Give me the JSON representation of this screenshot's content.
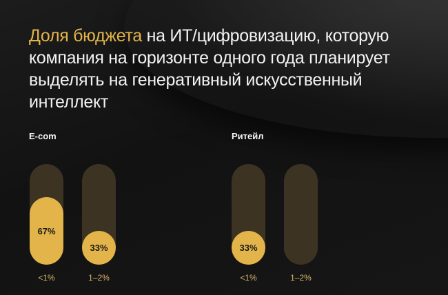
{
  "title": {
    "accent": "Доля бюджета",
    "rest": " на ИТ/цифровизацию, которую компания на горизонте одного года планирует выделять на генеративный искусственный интеллект"
  },
  "groups": [
    {
      "label": "E-com",
      "bars": [
        {
          "category": "<1%",
          "value": 67,
          "value_label": "67%"
        },
        {
          "category": "1–2%",
          "value": 33,
          "value_label": "33%"
        }
      ]
    },
    {
      "label": "Ритейл",
      "bars": [
        {
          "category": "<1%",
          "value": 33,
          "value_label": "33%"
        },
        {
          "category": "1–2%",
          "value": 0,
          "value_label": ""
        }
      ]
    }
  ],
  "colors": {
    "accent": "#e3b449",
    "track": "#3d3322",
    "background": "#141414",
    "category_text": "#d9b96a"
  },
  "chart_data": {
    "type": "bar",
    "title": "Доля бюджета на ИТ/цифровизацию, которую компания на горизонте одного года планирует выделять на генеративный искусственный интеллект",
    "categories": [
      "<1%",
      "1–2%"
    ],
    "series": [
      {
        "name": "E-com",
        "values": [
          67,
          33
        ]
      },
      {
        "name": "Ритейл",
        "values": [
          33,
          0
        ]
      }
    ],
    "xlabel": "",
    "ylabel": "",
    "ylim": [
      0,
      100
    ],
    "grid": false,
    "value_labels": true
  }
}
